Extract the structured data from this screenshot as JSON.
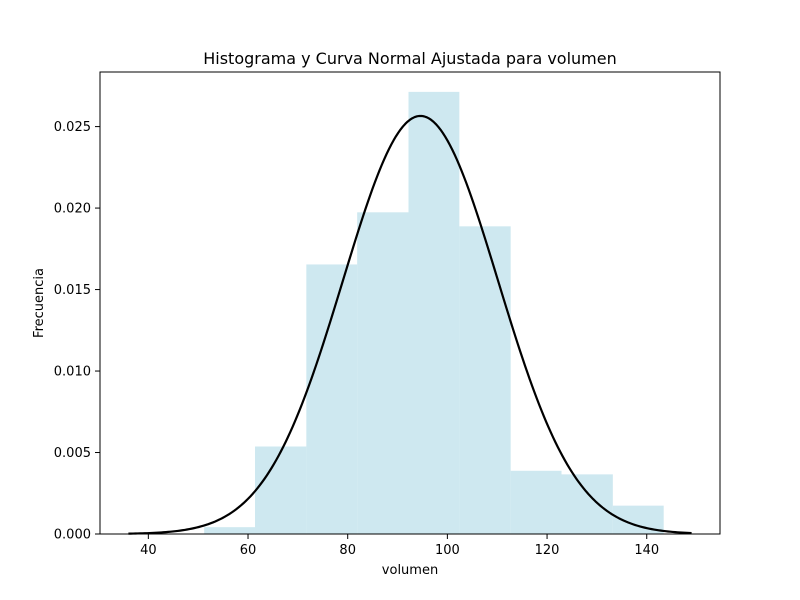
{
  "chart_data": {
    "type": "bar",
    "title": "Histograma y Curva Normal Ajustada para volumen",
    "xlabel": "volumen",
    "ylabel": "Frecuencia",
    "xlim": [
      30.3,
      154.7
    ],
    "ylim": [
      0,
      0.02835
    ],
    "xticks": [
      40,
      60,
      80,
      100,
      120,
      140
    ],
    "yticks": [
      0.0,
      0.005,
      0.01,
      0.015,
      0.02,
      0.025
    ],
    "ytick_labels": [
      "0.000",
      "0.005",
      "0.010",
      "0.015",
      "0.020",
      "0.025"
    ],
    "grid": false,
    "histogram": {
      "bin_edges": [
        51.2,
        61.4,
        71.7,
        81.9,
        92.2,
        102.4,
        112.7,
        122.9,
        133.2,
        143.4
      ],
      "values": [
        0.00042,
        0.00537,
        0.01654,
        0.01974,
        0.02713,
        0.01888,
        0.00388,
        0.00366,
        0.00174
      ],
      "color": "#add8e6"
    },
    "normal_curve": {
      "name": "",
      "mean": 94.6,
      "std": 15.55,
      "x_range": [
        36,
        149
      ],
      "color": "#000000"
    }
  }
}
